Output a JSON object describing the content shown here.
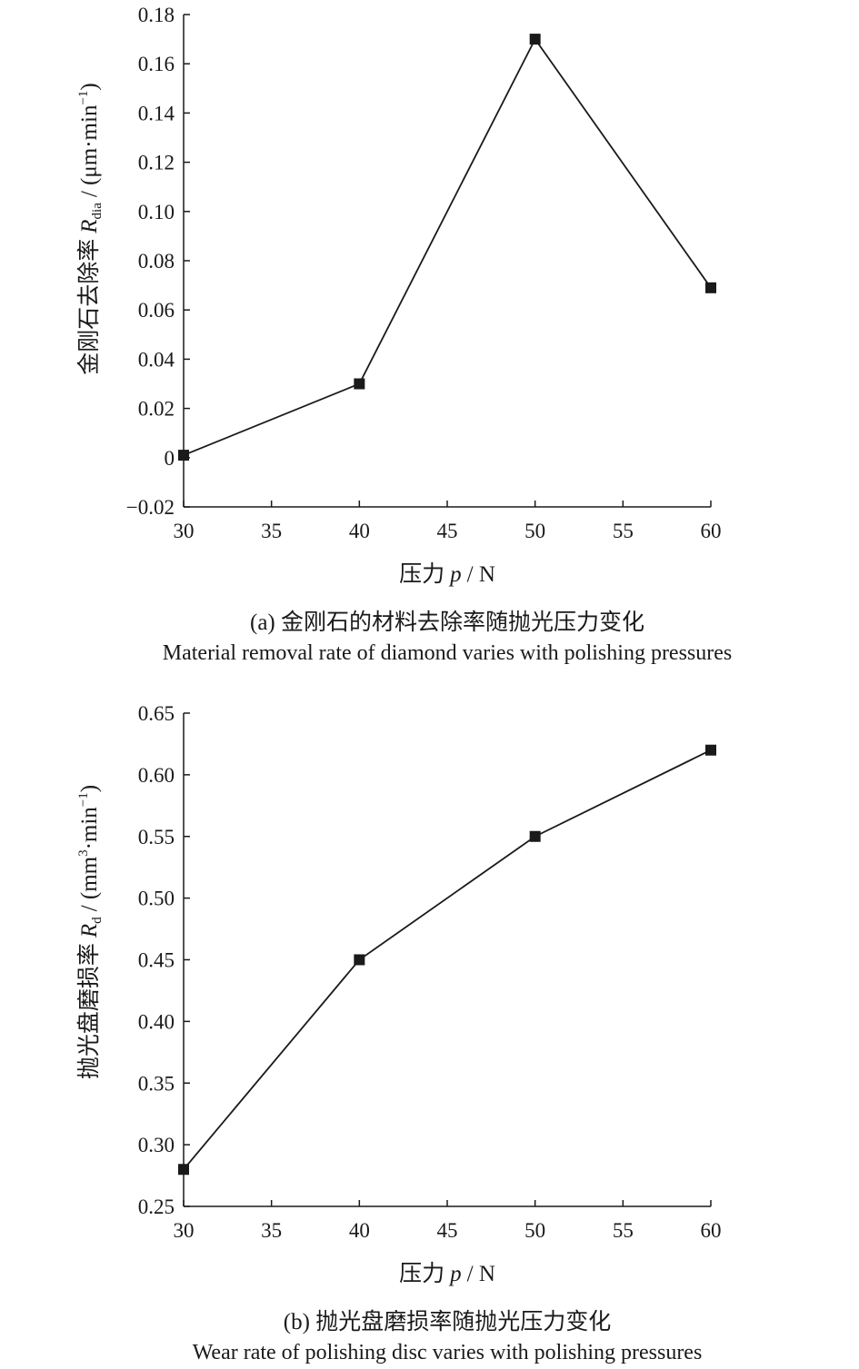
{
  "chart_data": [
    {
      "type": "line",
      "title": "",
      "x": [
        30,
        40,
        50,
        60
      ],
      "xticks": [
        30,
        35,
        40,
        45,
        50,
        55,
        60
      ],
      "xlim": [
        30,
        60
      ],
      "xlabel": "压力 p / N",
      "xlabel_main": "压力",
      "xlabel_var": "p",
      "xlabel_unit": "/ N",
      "ylabel": "金刚石去除率 Rdia / (μm·min−1)",
      "ylabel_main": "金刚石去除率",
      "ylabel_var": "R",
      "ylabel_sub": "dia",
      "ylabel_unit": "/ (μm·min",
      "ylabel_sup": "−1",
      "ylabel_close": ")",
      "ylim": [
        -0.02,
        0.18
      ],
      "yticks": [
        -0.02,
        0,
        0.02,
        0.04,
        0.06,
        0.08,
        0.1,
        0.12,
        0.14,
        0.16,
        0.18
      ],
      "ytick_labels": [
        "−0.02",
        "0",
        "0.02",
        "0.04",
        "0.06",
        "0.08",
        "0.10",
        "0.12",
        "0.14",
        "0.16",
        "0.18"
      ],
      "series": [
        {
          "values": [
            0.001,
            0.03,
            0.17,
            0.069
          ]
        }
      ],
      "marker": "square",
      "line_color": "#1a1a1a",
      "grid": false,
      "caption_cn": "(a) 金刚石的材料去除率随抛光压力变化",
      "caption_en": "Material removal rate of diamond varies with polishing pressures"
    },
    {
      "type": "line",
      "title": "",
      "x": [
        30,
        40,
        50,
        60
      ],
      "xticks": [
        30,
        35,
        40,
        45,
        50,
        55,
        60
      ],
      "xlim": [
        30,
        60
      ],
      "xlabel": "压力 p / N",
      "xlabel_main": "压力",
      "xlabel_var": "p",
      "xlabel_unit": "/ N",
      "ylabel": "抛光盘磨损率 Rd / (mm3·min−1)",
      "ylabel_main": "抛光盘磨损率",
      "ylabel_var": "R",
      "ylabel_sub": "d",
      "ylabel_unit": "/ (mm",
      "ylabel_sup": "3",
      "ylabel_unit2": "·min",
      "ylabel_sup2": "−1",
      "ylabel_close": ")",
      "ylim": [
        0.25,
        0.65
      ],
      "yticks": [
        0.25,
        0.3,
        0.35,
        0.4,
        0.45,
        0.5,
        0.55,
        0.6,
        0.65
      ],
      "ytick_labels": [
        "0.25",
        "0.30",
        "0.35",
        "0.40",
        "0.45",
        "0.50",
        "0.55",
        "0.60",
        "0.65"
      ],
      "series": [
        {
          "values": [
            0.28,
            0.45,
            0.55,
            0.62
          ]
        }
      ],
      "marker": "square",
      "line_color": "#1a1a1a",
      "grid": false,
      "caption_cn": "(b) 抛光盘磨损率随抛光压力变化",
      "caption_en": "Wear rate of polishing disc varies with polishing pressures"
    }
  ]
}
